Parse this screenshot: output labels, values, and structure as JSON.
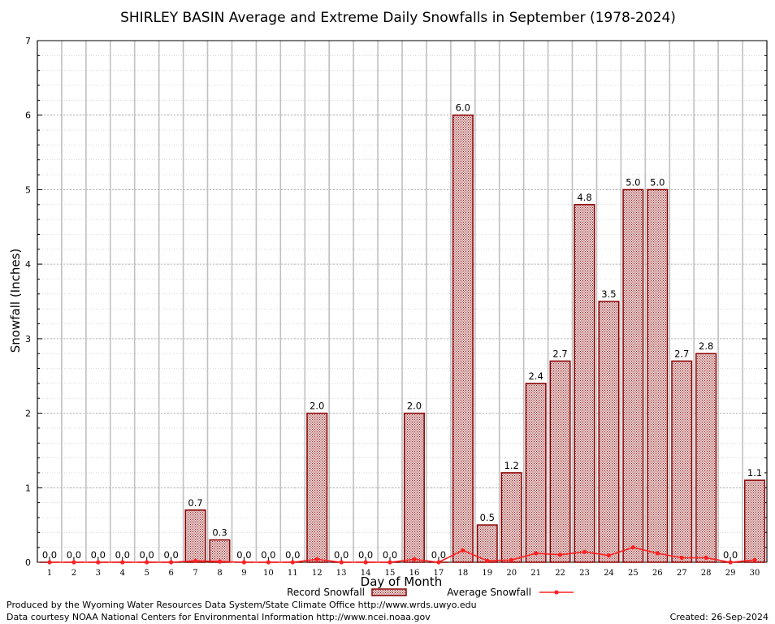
{
  "chart_data": {
    "type": "bar",
    "title": "SHIRLEY BASIN Average and Extreme Daily Snowfalls in September (1978-2024)",
    "xlabel": "Day of Month",
    "ylabel": "Snowfall (Inches)",
    "ylim": [
      0,
      7
    ],
    "yticks": [
      "0",
      "1",
      "2",
      "3",
      "4",
      "5",
      "6",
      "7"
    ],
    "categories": [
      "1",
      "2",
      "3",
      "4",
      "5",
      "6",
      "7",
      "8",
      "9",
      "10",
      "11",
      "12",
      "13",
      "14",
      "15",
      "16",
      "17",
      "18",
      "19",
      "20",
      "21",
      "22",
      "23",
      "24",
      "25",
      "26",
      "27",
      "28",
      "29",
      "30"
    ],
    "series": [
      {
        "name": "Record Snowfall",
        "kind": "bar",
        "values": [
          0.0,
          0.0,
          0.0,
          0.0,
          0.0,
          0.0,
          0.7,
          0.3,
          0.0,
          0.0,
          0.0,
          2.0,
          0.0,
          0.0,
          0.0,
          2.0,
          0.0,
          6.0,
          0.5,
          1.2,
          2.4,
          2.7,
          4.8,
          3.5,
          5.0,
          5.0,
          2.7,
          2.8,
          0.0,
          1.1
        ],
        "labels": [
          "0.0",
          "0.0",
          "0.0",
          "0.0",
          "0.0",
          "0.0",
          "0.7",
          "0.3",
          "0.0",
          "0.0",
          "0.0",
          "2.0",
          "0.0",
          "0.0",
          "0.0",
          "2.0",
          "0.0",
          "6.0",
          "0.5",
          "1.2",
          "2.4",
          "2.7",
          "4.8",
          "3.5",
          "5.0",
          "5.0",
          "2.7",
          "2.8",
          "0.0",
          "1.1"
        ]
      },
      {
        "name": "Average Snowfall",
        "kind": "line",
        "values": [
          0,
          0,
          0,
          0,
          0,
          0,
          0.02,
          0.01,
          0,
          0,
          0,
          0.04,
          0,
          0,
          0,
          0.04,
          0,
          0.16,
          0.02,
          0.03,
          0.12,
          0.1,
          0.14,
          0.09,
          0.2,
          0.12,
          0.06,
          0.06,
          0,
          0.03
        ]
      }
    ],
    "grid": true,
    "legend": "bottom-center",
    "colors": {
      "bar_edge": "#8b0000",
      "bar_fill": "#c8a0a0",
      "line": "#ff2020",
      "grid": "#c0c0c0"
    }
  },
  "footer": {
    "produced_by": "Produced by the Wyoming Water Resources Data System/State Climate Office http://www.wrds.uwyo.edu",
    "data_courtesy": "Data courtesy NOAA National Centers for Environmental Information http://www.ncei.noaa.gov",
    "created": "Created:  26-Sep-2024"
  }
}
